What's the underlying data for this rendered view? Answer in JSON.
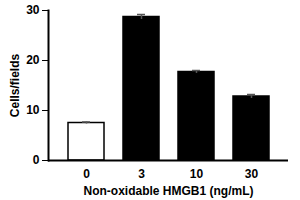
{
  "chart_data": {
    "type": "bar",
    "x_label": "Non-oxidable HMGB1 (ng/mL)",
    "y_label": "Cells/fields",
    "categories": [
      "0",
      "3",
      "10",
      "30"
    ],
    "values": [
      7.5,
      28.7,
      17.7,
      12.8
    ],
    "errors": [
      0.2,
      0.5,
      0.3,
      0.4
    ],
    "colors": [
      "#ffffff",
      "#000000",
      "#000000",
      "#000000"
    ],
    "ylim": [
      0,
      30
    ],
    "yticks": [
      0,
      10,
      20,
      30
    ],
    "grid": false
  }
}
